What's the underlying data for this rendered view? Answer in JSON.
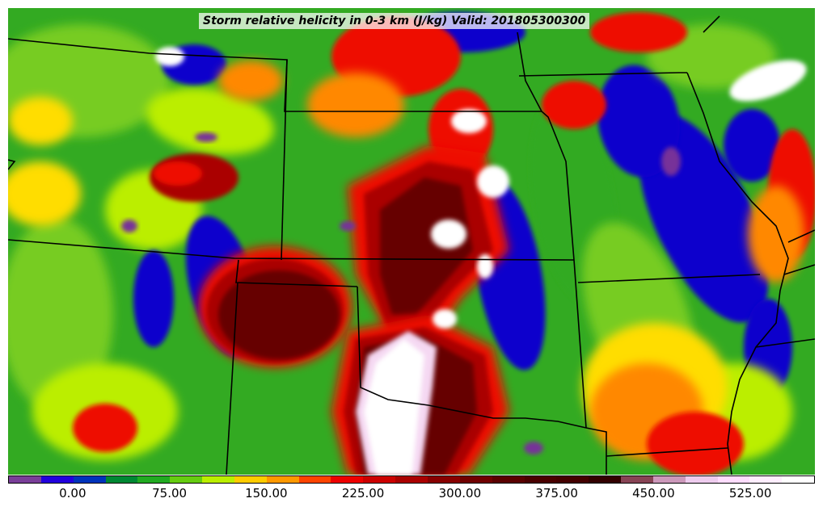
{
  "title": "Storm relative helicity in 0-3 km (J/kg) Valid: 201805300300",
  "colorbar": {
    "colors": [
      "#7a3f99",
      "#2200dd",
      "#0033bb",
      "#008833",
      "#22aa22",
      "#66cc11",
      "#bbee00",
      "#ffcc00",
      "#ff9900",
      "#ff4400",
      "#ee0000",
      "#cc0000",
      "#aa0000",
      "#880000",
      "#700000",
      "#5a0000",
      "#4a0000",
      "#440000",
      "#330000",
      "#884455",
      "#cc99bb",
      "#eeccee",
      "#ffddff",
      "#ffeeff",
      "#ffffff"
    ],
    "tick_labels": [
      "0.00",
      "75.00",
      "150.00",
      "225.00",
      "300.00",
      "375.00",
      "450.00",
      "525.00"
    ],
    "tick_values": [
      0,
      75,
      150,
      225,
      300,
      375,
      450,
      525
    ],
    "vmin": -50,
    "vmax": 575
  },
  "map_colors": {
    "base": "#33aa22",
    "lightgreen": "#77cc22",
    "yellowgreen": "#bbee00",
    "yellow": "#ffdd00",
    "orange": "#ff8800",
    "red": "#ee1100",
    "darkred": "#aa0000",
    "maroon": "#660000",
    "blue": "#1100cc",
    "purple": "#773399",
    "white": "#ffffff",
    "pink": "#f5d8f2",
    "border": "#000000"
  }
}
